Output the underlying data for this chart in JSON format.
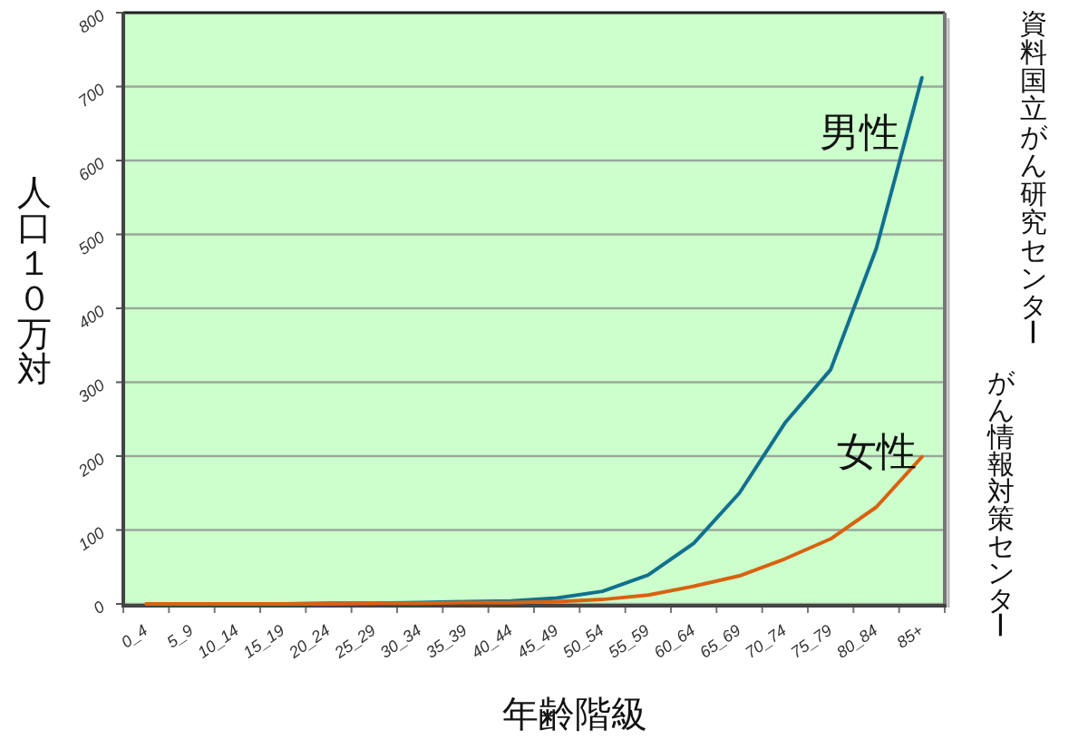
{
  "chart_data": {
    "type": "line",
    "xlabel": "年齢階級",
    "ylabel": "人口１０万対",
    "categories": [
      "0_4",
      "5_9",
      "10_14",
      "15_19",
      "20_24",
      "25_29",
      "30_34",
      "35_39",
      "40_44",
      "45_49",
      "50_54",
      "55_59",
      "60_64",
      "65_69",
      "70_74",
      "75_79",
      "80_84",
      "85+"
    ],
    "series": [
      {
        "name": "男性",
        "color": "#11708f",
        "values": [
          null,
          null,
          0,
          0,
          1,
          1,
          2,
          3,
          4,
          8,
          17,
          39,
          82,
          150,
          245,
          317,
          481,
          712
        ]
      },
      {
        "name": "女性",
        "color": "#d9620f",
        "values": [
          0,
          0,
          0,
          0,
          0,
          1,
          1,
          2,
          2,
          3,
          6,
          12,
          24,
          38,
          61,
          88,
          131,
          199
        ]
      }
    ],
    "ylim": [
      0,
      800
    ],
    "yticks": [
      0,
      100,
      200,
      300,
      400,
      500,
      600,
      700,
      800
    ],
    "grid": "y",
    "annotations": [
      "資料国立がん研究センター",
      "がん情報対策センター"
    ]
  }
}
